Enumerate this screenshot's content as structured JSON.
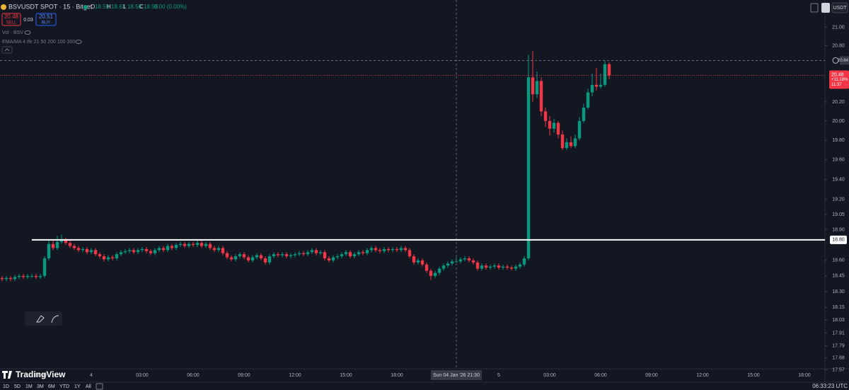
{
  "chart_data": {
    "type": "candlestick",
    "header": {
      "symbol": "BSVUSDT SPOT · 15 · Bitget",
      "ohlc": [
        {
          "key": "O",
          "value": "18.59"
        },
        {
          "key": "H",
          "value": "18.63"
        },
        {
          "key": "L",
          "value": "18.58"
        },
        {
          "key": "C",
          "value": "18.59"
        }
      ],
      "change": "0.00 (0.00%)",
      "sell": {
        "price": "20.48",
        "label": "SELL"
      },
      "spread": "0.03",
      "buy": {
        "price": "20.51",
        "label": "BUY"
      },
      "indicators": [
        "Vol · BSV",
        "EMA/MA 4 tfe 21 50 200 100 300"
      ]
    },
    "currency": "USDT",
    "categories": [
      null,
      null,
      null,
      null,
      null,
      null,
      null,
      null,
      null,
      "21:00",
      null,
      null,
      null,
      null,
      null,
      null,
      null,
      null,
      null,
      null,
      null,
      "4",
      null,
      null,
      null,
      null,
      null,
      null,
      null,
      null,
      null,
      null,
      null,
      "03:00",
      null,
      null,
      null,
      null,
      null,
      null,
      null,
      null,
      null,
      null,
      null,
      "06:00",
      null,
      null,
      null,
      null,
      null,
      null,
      null,
      null,
      null,
      null,
      null,
      "09:00",
      null,
      null,
      null,
      null,
      null,
      null,
      null,
      null,
      null,
      null,
      null,
      "12:00",
      null,
      null,
      null,
      null,
      null,
      null,
      null,
      null,
      null,
      null,
      null,
      "15:00",
      null,
      null,
      null,
      null,
      null,
      null,
      null,
      null,
      null,
      null,
      null,
      "18:00",
      null,
      null,
      null,
      null,
      null,
      null,
      null,
      null,
      null,
      null,
      null,
      null,
      null,
      null,
      null,
      null,
      null,
      null,
      null,
      null,
      null,
      null,
      null,
      "5",
      null,
      null,
      null,
      null,
      null,
      null,
      null,
      null,
      null,
      null,
      null,
      "03:00",
      null,
      null,
      null,
      null,
      null,
      null,
      null,
      null,
      null,
      null,
      null,
      "06:00",
      null,
      null,
      null,
      null,
      null,
      null,
      null,
      null,
      null,
      null,
      null,
      "09:00",
      null,
      null,
      null,
      null,
      null,
      null,
      null,
      null,
      null,
      null,
      null,
      "12:00",
      null,
      null,
      null,
      null,
      null,
      null,
      null,
      null,
      null,
      null,
      null,
      "15:00",
      null,
      null,
      null,
      null,
      null,
      null,
      null,
      null,
      null,
      null,
      null,
      "18:00",
      null,
      null,
      null
    ],
    "open": [
      18.43,
      18.42,
      18.43,
      18.42,
      18.44,
      18.45,
      18.44,
      18.45,
      18.45,
      18.44,
      18.45,
      18.62,
      18.76,
      18.72,
      18.78,
      18.8,
      18.77,
      18.74,
      18.72,
      18.7,
      18.71,
      18.68,
      18.7,
      18.66,
      18.64,
      18.61,
      18.63,
      18.62,
      18.66,
      18.68,
      18.69,
      18.7,
      18.68,
      18.7,
      18.71,
      18.69,
      18.67,
      18.7,
      18.72,
      18.7,
      18.74,
      18.72,
      18.75,
      18.76,
      18.74,
      18.76,
      18.75,
      18.77,
      18.74,
      18.76,
      18.72,
      18.7,
      18.72,
      18.67,
      18.63,
      18.61,
      18.64,
      18.66,
      18.63,
      18.6,
      18.63,
      18.65,
      18.62,
      18.58,
      18.64,
      18.66,
      18.65,
      18.66,
      18.64,
      18.65,
      18.66,
      18.67,
      18.66,
      18.68,
      18.7,
      18.67,
      18.68,
      18.62,
      18.6,
      18.63,
      18.64,
      18.66,
      18.68,
      18.64,
      18.66,
      18.68,
      18.67,
      18.7,
      18.72,
      18.7,
      18.69,
      18.71,
      18.7,
      18.71,
      18.7,
      18.72,
      18.7,
      18.64,
      18.58,
      18.6,
      18.56,
      18.5,
      18.45,
      18.48,
      18.52,
      18.55,
      18.57,
      18.59,
      18.59,
      18.61,
      18.62,
      18.6,
      18.58,
      18.52,
      18.55,
      18.53,
      18.54,
      18.55,
      18.53,
      18.54,
      18.53,
      18.52,
      18.54,
      18.56,
      18.62,
      20.46,
      20.28,
      20.42,
      20.1,
      20.0,
      19.92,
      19.98,
      19.86,
      19.72,
      19.78,
      19.74,
      19.82,
      20.0,
      20.14,
      20.3,
      20.38,
      20.36,
      20.38,
      20.6,
      null,
      null,
      null,
      null,
      null,
      null,
      null,
      null,
      null,
      null,
      null,
      null,
      null,
      null,
      null,
      null,
      null,
      null,
      null,
      null,
      null,
      null,
      null,
      null,
      null,
      null,
      null,
      null,
      null,
      null,
      null,
      null,
      null,
      null,
      null,
      null,
      null,
      null,
      null,
      null,
      null,
      null,
      null,
      null,
      null,
      null,
      null,
      null,
      null
    ],
    "high": [
      18.45,
      18.45,
      18.45,
      18.46,
      18.47,
      18.47,
      18.47,
      18.47,
      18.47,
      18.47,
      18.64,
      18.8,
      18.79,
      18.84,
      18.85,
      18.82,
      18.79,
      18.76,
      18.74,
      18.73,
      18.73,
      18.72,
      18.72,
      18.68,
      18.66,
      18.65,
      18.65,
      18.68,
      18.7,
      18.71,
      18.72,
      18.72,
      18.72,
      18.73,
      18.73,
      18.71,
      18.72,
      18.74,
      18.74,
      18.76,
      18.76,
      18.77,
      18.78,
      18.78,
      18.78,
      18.78,
      18.79,
      18.79,
      18.78,
      18.78,
      18.74,
      18.74,
      18.74,
      18.69,
      18.65,
      18.66,
      18.68,
      18.68,
      18.65,
      18.65,
      18.67,
      18.67,
      18.64,
      18.66,
      18.68,
      18.68,
      18.68,
      18.68,
      18.67,
      18.68,
      18.69,
      18.69,
      18.7,
      18.72,
      18.72,
      18.7,
      18.7,
      18.64,
      18.65,
      18.66,
      18.68,
      18.7,
      18.7,
      18.68,
      18.7,
      18.7,
      18.72,
      18.74,
      18.74,
      18.72,
      18.73,
      18.73,
      18.73,
      18.73,
      18.74,
      18.74,
      18.72,
      18.66,
      18.62,
      18.62,
      18.58,
      18.52,
      18.5,
      18.54,
      18.57,
      18.59,
      18.61,
      18.63,
      18.63,
      18.64,
      18.64,
      18.62,
      18.6,
      18.57,
      18.57,
      18.56,
      18.57,
      18.57,
      18.56,
      18.56,
      18.55,
      18.56,
      18.58,
      18.64,
      20.7,
      20.74,
      20.52,
      20.46,
      20.14,
      20.05,
      20.02,
      20.0,
      19.9,
      19.82,
      19.84,
      19.86,
      20.04,
      20.18,
      20.34,
      20.5,
      20.56,
      20.5,
      20.64,
      20.62,
      null,
      null,
      null,
      null,
      null,
      null,
      null,
      null,
      null,
      null,
      null,
      null,
      null,
      null,
      null,
      null,
      null,
      null,
      null,
      null,
      null,
      null,
      null,
      null,
      null,
      null,
      null,
      null,
      null,
      null,
      null,
      null,
      null,
      null,
      null,
      null,
      null,
      null,
      null,
      null,
      null,
      null,
      null,
      null,
      null,
      null,
      null,
      null,
      null
    ],
    "low": [
      18.4,
      18.4,
      18.4,
      18.4,
      18.42,
      18.42,
      18.42,
      18.43,
      18.42,
      18.42,
      18.43,
      18.6,
      18.7,
      18.7,
      18.76,
      18.75,
      18.72,
      18.7,
      18.68,
      18.68,
      18.66,
      18.66,
      18.64,
      18.62,
      18.59,
      18.59,
      18.6,
      18.6,
      18.64,
      18.66,
      18.67,
      18.66,
      18.66,
      18.68,
      18.67,
      18.65,
      18.65,
      18.68,
      18.68,
      18.68,
      18.7,
      18.7,
      18.73,
      18.72,
      18.72,
      18.73,
      18.73,
      18.72,
      18.72,
      18.7,
      18.68,
      18.68,
      18.65,
      18.61,
      18.59,
      18.59,
      18.62,
      18.61,
      18.58,
      18.58,
      18.61,
      18.6,
      18.56,
      18.56,
      18.62,
      18.63,
      18.63,
      18.62,
      18.62,
      18.63,
      18.64,
      18.64,
      18.64,
      18.66,
      18.65,
      18.65,
      18.6,
      18.58,
      18.58,
      18.61,
      18.62,
      18.64,
      18.62,
      18.62,
      18.64,
      18.65,
      18.65,
      18.68,
      18.68,
      18.67,
      18.67,
      18.68,
      18.68,
      18.68,
      18.68,
      18.68,
      18.62,
      18.56,
      18.56,
      18.54,
      18.48,
      18.41,
      18.43,
      18.46,
      18.5,
      18.53,
      18.55,
      18.58,
      18.57,
      18.59,
      18.58,
      18.56,
      18.5,
      18.5,
      18.51,
      18.51,
      18.52,
      18.51,
      18.51,
      18.51,
      18.5,
      18.5,
      18.52,
      18.54,
      18.6,
      20.2,
      20.24,
      20.05,
      19.94,
      19.85,
      19.88,
      19.82,
      19.7,
      19.7,
      19.72,
      19.72,
      19.8,
      19.98,
      20.12,
      20.26,
      20.32,
      20.34,
      20.36,
      20.44,
      null,
      null,
      null,
      null,
      null,
      null,
      null,
      null,
      null,
      null,
      null,
      null,
      null,
      null,
      null,
      null,
      null,
      null,
      null,
      null,
      null,
      null,
      null,
      null,
      null,
      null,
      null,
      null,
      null,
      null,
      null,
      null,
      null,
      null,
      null,
      null,
      null,
      null,
      null,
      null,
      null,
      null,
      null,
      null,
      null,
      null,
      null,
      null,
      null
    ],
    "close": [
      18.42,
      18.43,
      18.42,
      18.44,
      18.45,
      18.44,
      18.45,
      18.45,
      18.44,
      18.45,
      18.62,
      18.76,
      18.72,
      18.78,
      18.8,
      18.77,
      18.74,
      18.72,
      18.7,
      18.71,
      18.68,
      18.7,
      18.66,
      18.64,
      18.61,
      18.63,
      18.62,
      18.66,
      18.68,
      18.69,
      18.7,
      18.68,
      18.7,
      18.71,
      18.69,
      18.67,
      18.7,
      18.72,
      18.7,
      18.74,
      18.72,
      18.75,
      18.76,
      18.74,
      18.76,
      18.75,
      18.77,
      18.74,
      18.76,
      18.72,
      18.7,
      18.72,
      18.67,
      18.63,
      18.61,
      18.64,
      18.66,
      18.63,
      18.6,
      18.63,
      18.65,
      18.62,
      18.58,
      18.64,
      18.66,
      18.65,
      18.66,
      18.64,
      18.65,
      18.66,
      18.67,
      18.66,
      18.68,
      18.7,
      18.67,
      18.68,
      18.62,
      18.6,
      18.63,
      18.64,
      18.66,
      18.68,
      18.64,
      18.66,
      18.68,
      18.67,
      18.7,
      18.72,
      18.7,
      18.69,
      18.71,
      18.7,
      18.71,
      18.7,
      18.72,
      18.7,
      18.64,
      18.58,
      18.6,
      18.56,
      18.5,
      18.45,
      18.48,
      18.52,
      18.55,
      18.57,
      18.59,
      18.59,
      18.61,
      18.62,
      18.6,
      18.58,
      18.52,
      18.55,
      18.53,
      18.54,
      18.55,
      18.53,
      18.54,
      18.53,
      18.52,
      18.54,
      18.56,
      18.62,
      20.46,
      20.28,
      20.42,
      20.1,
      20.0,
      19.92,
      19.98,
      19.86,
      19.72,
      19.78,
      19.74,
      19.82,
      20.0,
      20.14,
      20.3,
      20.38,
      20.36,
      20.38,
      20.6,
      20.48,
      null,
      null,
      null,
      null,
      null,
      null,
      null,
      null,
      null,
      null,
      null,
      null,
      null,
      null,
      null,
      null,
      null,
      null,
      null,
      null,
      null,
      null,
      null,
      null,
      null,
      null,
      null,
      null,
      null,
      null,
      null,
      null,
      null,
      null,
      null,
      null,
      null,
      null,
      null,
      null,
      null,
      null,
      null,
      null,
      null,
      null,
      null,
      null,
      null
    ],
    "up_color": "#089981",
    "down_color": "#f23645",
    "log_scale": true,
    "grid": false,
    "ylim": [
      17.47,
      21.3
    ],
    "yticks": [
      {
        "value": 21.0,
        "label": "21.00"
      },
      {
        "value": 20.8,
        "label": "20.80"
      },
      {
        "value": 20.2,
        "label": "20.20"
      },
      {
        "value": 20.0,
        "label": "20.00"
      },
      {
        "value": 19.8,
        "label": "19.80"
      },
      {
        "value": 19.6,
        "label": "19.60"
      },
      {
        "value": 19.4,
        "label": "19.40"
      },
      {
        "value": 19.2,
        "label": "19.20"
      },
      {
        "value": 19.05,
        "label": "19.05"
      },
      {
        "value": 18.9,
        "label": "18.90"
      },
      {
        "value": 18.6,
        "label": "18.60"
      },
      {
        "value": 18.45,
        "label": "18.45"
      },
      {
        "value": 18.3,
        "label": "18.30"
      },
      {
        "value": 18.15,
        "label": "18.15"
      },
      {
        "value": 18.03,
        "label": "18.03"
      },
      {
        "value": 17.91,
        "label": "17.91"
      },
      {
        "value": 17.79,
        "label": "17.79"
      },
      {
        "value": 17.68,
        "label": "17.68"
      },
      {
        "value": 17.57,
        "label": "17.57"
      }
    ],
    "hline": {
      "value": 18.8,
      "label": "18.80"
    },
    "crosshair": {
      "time_label": "Sun 04 Jan '26   21:30",
      "price": {
        "value": 20.64,
        "label": "20.64"
      }
    },
    "last_price": {
      "value": 20.48,
      "label": "20.48",
      "change": "+11.18%",
      "countdown": "11:37"
    },
    "ranges": [
      "1D",
      "5D",
      "1M",
      "3M",
      "6M",
      "YTD",
      "1Y",
      "All"
    ],
    "clock": "06:33:23 UTC",
    "brand": "TradingView"
  }
}
